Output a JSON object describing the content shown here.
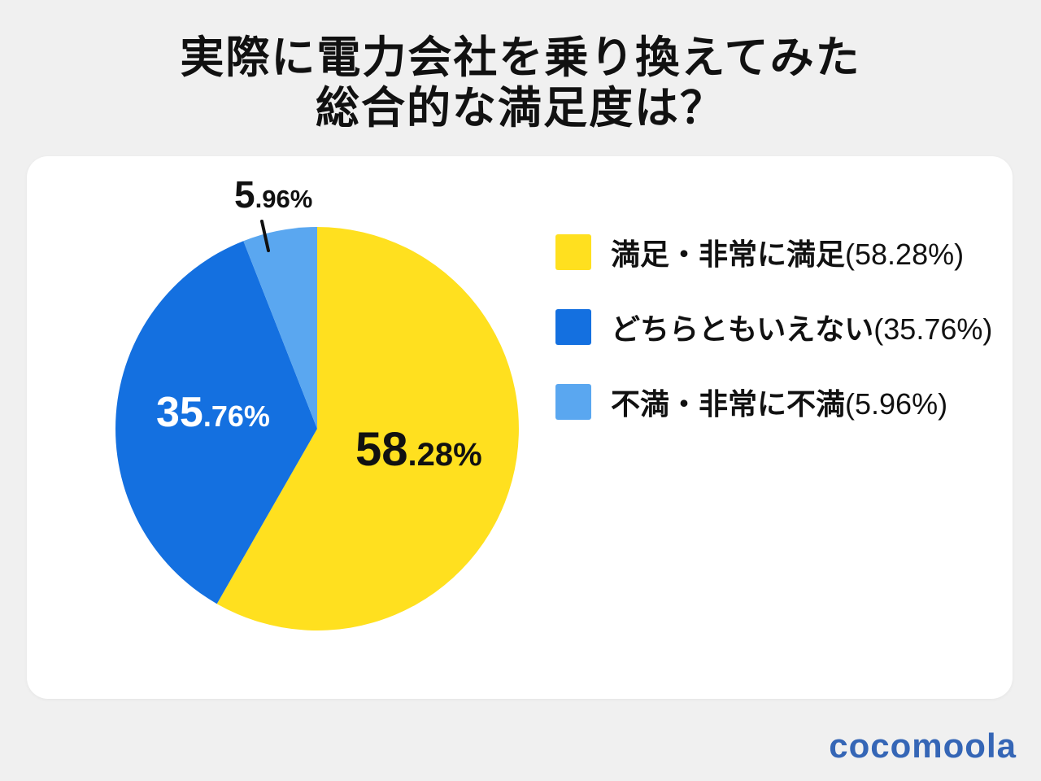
{
  "title": {
    "line1": "実際に電力会社を乗り換えてみた",
    "line2": "総合的な満足度は？"
  },
  "chart_data": {
    "type": "pie",
    "title": "実際に電力会社を乗り換えてみた 総合的な満足度は？",
    "unit": "%",
    "direction": "clockwise",
    "start_angle_deg": 0,
    "legend_position": "right",
    "slices": [
      {
        "label": "満足・非常に満足",
        "value": 58.28,
        "color": "#FFE01F",
        "label_color": "#111111"
      },
      {
        "label": "どちらともいえない",
        "value": 35.76,
        "color": "#1470E0",
        "label_color": "#FFFFFF"
      },
      {
        "label": "不満・非常に不満",
        "value": 5.96,
        "color": "#5AA7F0",
        "label_color": "#111111"
      }
    ]
  },
  "logo": {
    "text": "cocomoola",
    "color": "#3566B6"
  }
}
